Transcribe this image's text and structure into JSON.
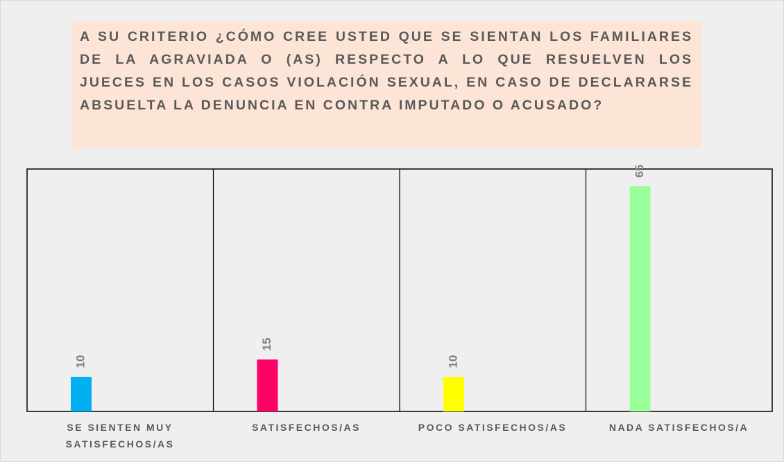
{
  "chart_data": {
    "type": "bar",
    "title": "A SU CRITERIO ¿CÓMO CREE USTED QUE SE SIENTAN LOS FAMILIARES DE LA AGRAVIADA O (AS) RESPECTO A LO QUE RESUELVEN LOS JUECES EN LOS CASOS VIOLACIÓN SEXUAL, EN CASO DE DECLARARSE ABSUELTA LA DENUNCIA EN CONTRA IMPUTADO O ACUSADO?",
    "categories": [
      "SE SIENTEN MUY SATISFECHOS/AS",
      "SATISFECHOS/AS",
      "POCO SATISFECHOS/AS",
      "NADA SATISFECHOS/A"
    ],
    "values": [
      10,
      15,
      10,
      65
    ],
    "colors": [
      "#00b0f0",
      "#ff0066",
      "#ffff00",
      "#99ff99"
    ],
    "ylim": [
      0,
      70
    ]
  }
}
